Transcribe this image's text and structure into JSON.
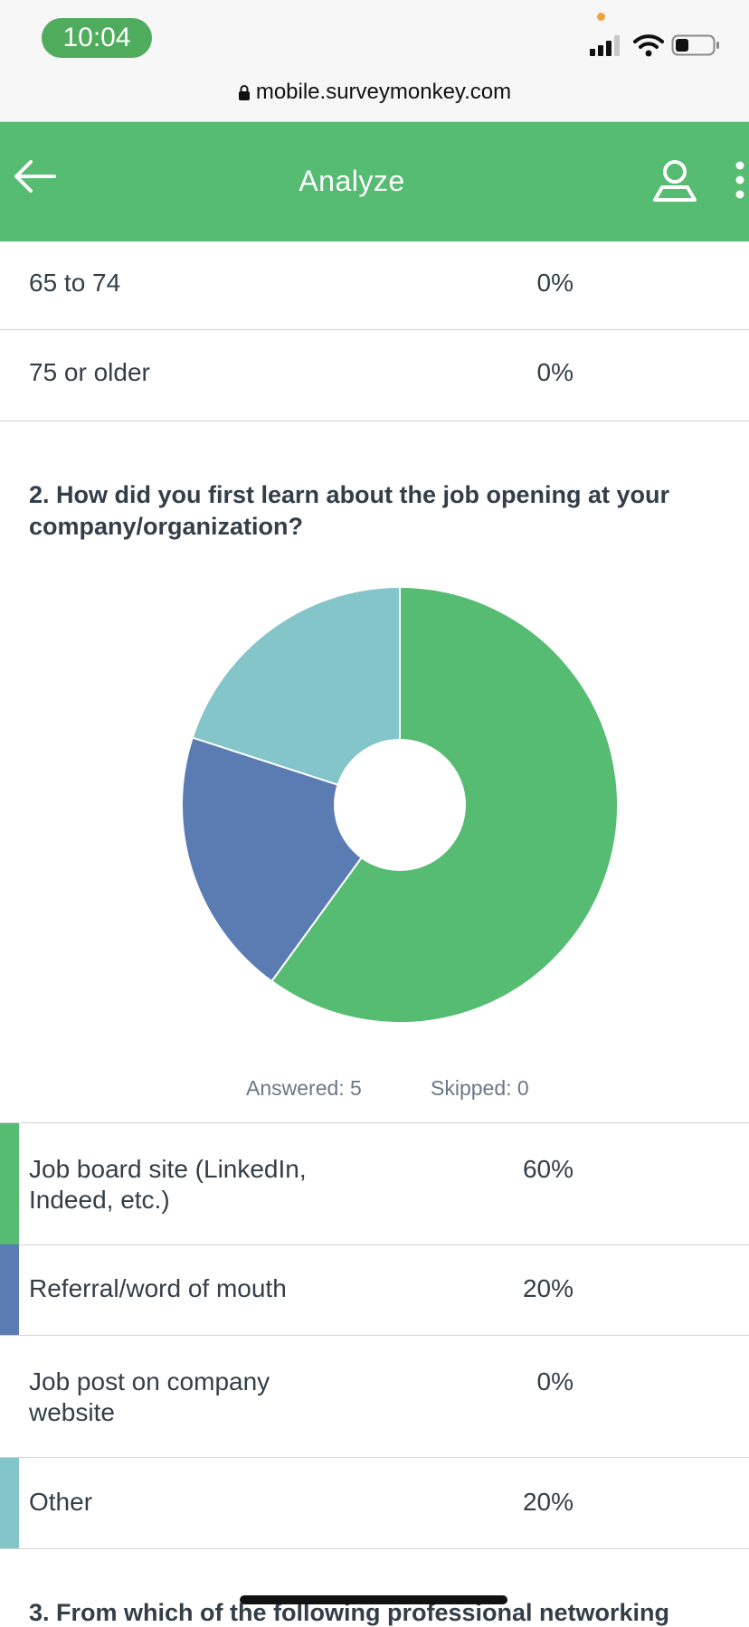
{
  "status_bar": {
    "time": "10:04",
    "url": "mobile.surveymonkey.com"
  },
  "header": {
    "title": "Analyze"
  },
  "icons": {
    "back": "arrow-left-icon",
    "account": "user-icon",
    "more": "more-vertical-icon",
    "lock": "lock-icon"
  },
  "age_rows": [
    {
      "label": "65 to 74",
      "percent": "0%"
    },
    {
      "label": "75 or older",
      "percent": "0%"
    }
  ],
  "question": {
    "title": "2. How did you first learn about the job opening at your company/organization?",
    "answered": "Answered: 5",
    "skipped": "Skipped: 0"
  },
  "chart_data": {
    "type": "pie",
    "categories": [
      "Job board site (LinkedIn, Indeed, etc.)",
      "Referral/word of mouth",
      "Job post on company website",
      "Other"
    ],
    "values": [
      60,
      20,
      0,
      20
    ],
    "colors": [
      "#55bc72",
      "#5b7bb3",
      "#ffffff",
      "#83c5c9"
    ]
  },
  "answer_rows": [
    {
      "label": "Job board site (LinkedIn, Indeed, etc.)",
      "percent": "60%",
      "color": "#55bc72"
    },
    {
      "label": "Referral/word of mouth",
      "percent": "20%",
      "color": "#5b7bb3"
    },
    {
      "label": "Job post on company website",
      "percent": "0%",
      "color": ""
    },
    {
      "label": "Other",
      "percent": "20%",
      "color": "#83c5c9"
    }
  ],
  "next_question": "3. From which of the following professional networking"
}
